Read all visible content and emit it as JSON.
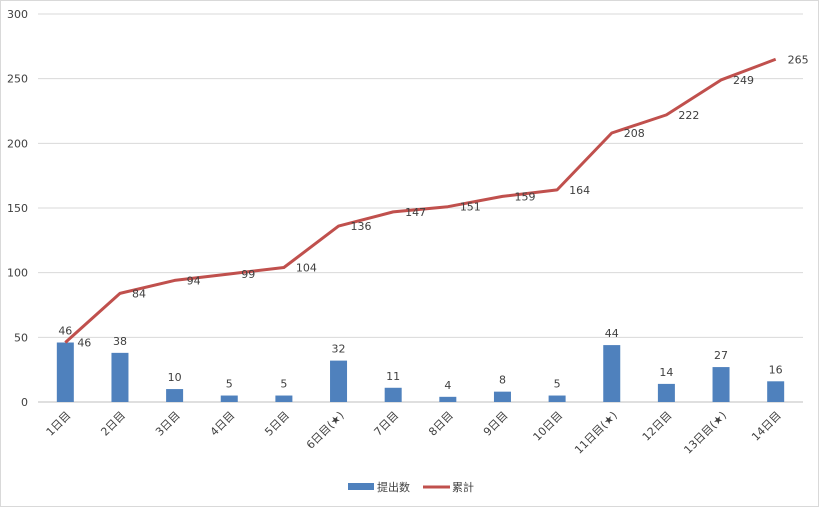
{
  "chart_data": {
    "type": "bar",
    "title": "",
    "xlabel": "",
    "ylabel": "",
    "ylim": [
      0,
      300
    ],
    "yticks": [
      0,
      50,
      100,
      150,
      200,
      250,
      300
    ],
    "grid": true,
    "legend_position": "bottom",
    "categories": [
      "1日目",
      "2日目",
      "3日目",
      "4日目",
      "5日目",
      "6日目(★)",
      "7日目",
      "8日目",
      "9日目",
      "10日目",
      "11日目(★)",
      "12日目",
      "13日目(★)",
      "14日目"
    ],
    "series": [
      {
        "name": "提出数",
        "type": "bar",
        "color": "#4f81bd",
        "values": [
          46,
          38,
          10,
          5,
          5,
          32,
          11,
          4,
          8,
          5,
          44,
          14,
          27,
          16
        ]
      },
      {
        "name": "累計",
        "type": "line",
        "color": "#c0504d",
        "values": [
          46,
          84,
          94,
          99,
          104,
          136,
          147,
          151,
          159,
          164,
          208,
          222,
          249,
          265
        ]
      }
    ]
  }
}
